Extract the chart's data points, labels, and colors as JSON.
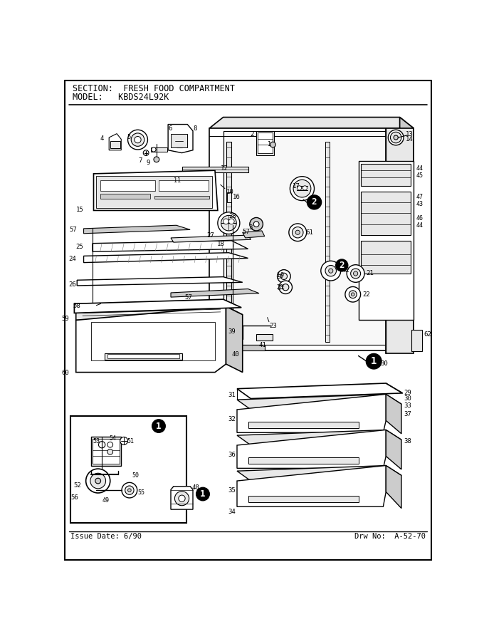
{
  "title_section": "SECTION:  FRESH FOOD COMPARTMENT",
  "title_model": "MODEL:   KBDS24L92K",
  "footer_left": "Issue Date: 6/90",
  "footer_right": "Drw No:  A-52-70",
  "bg_color": "#ffffff",
  "line_color": "#000000",
  "fig_width": 6.8,
  "fig_height": 8.9,
  "dpi": 100,
  "gray_light": "#e8e8e8",
  "gray_med": "#cccccc",
  "gray_dark": "#999999"
}
